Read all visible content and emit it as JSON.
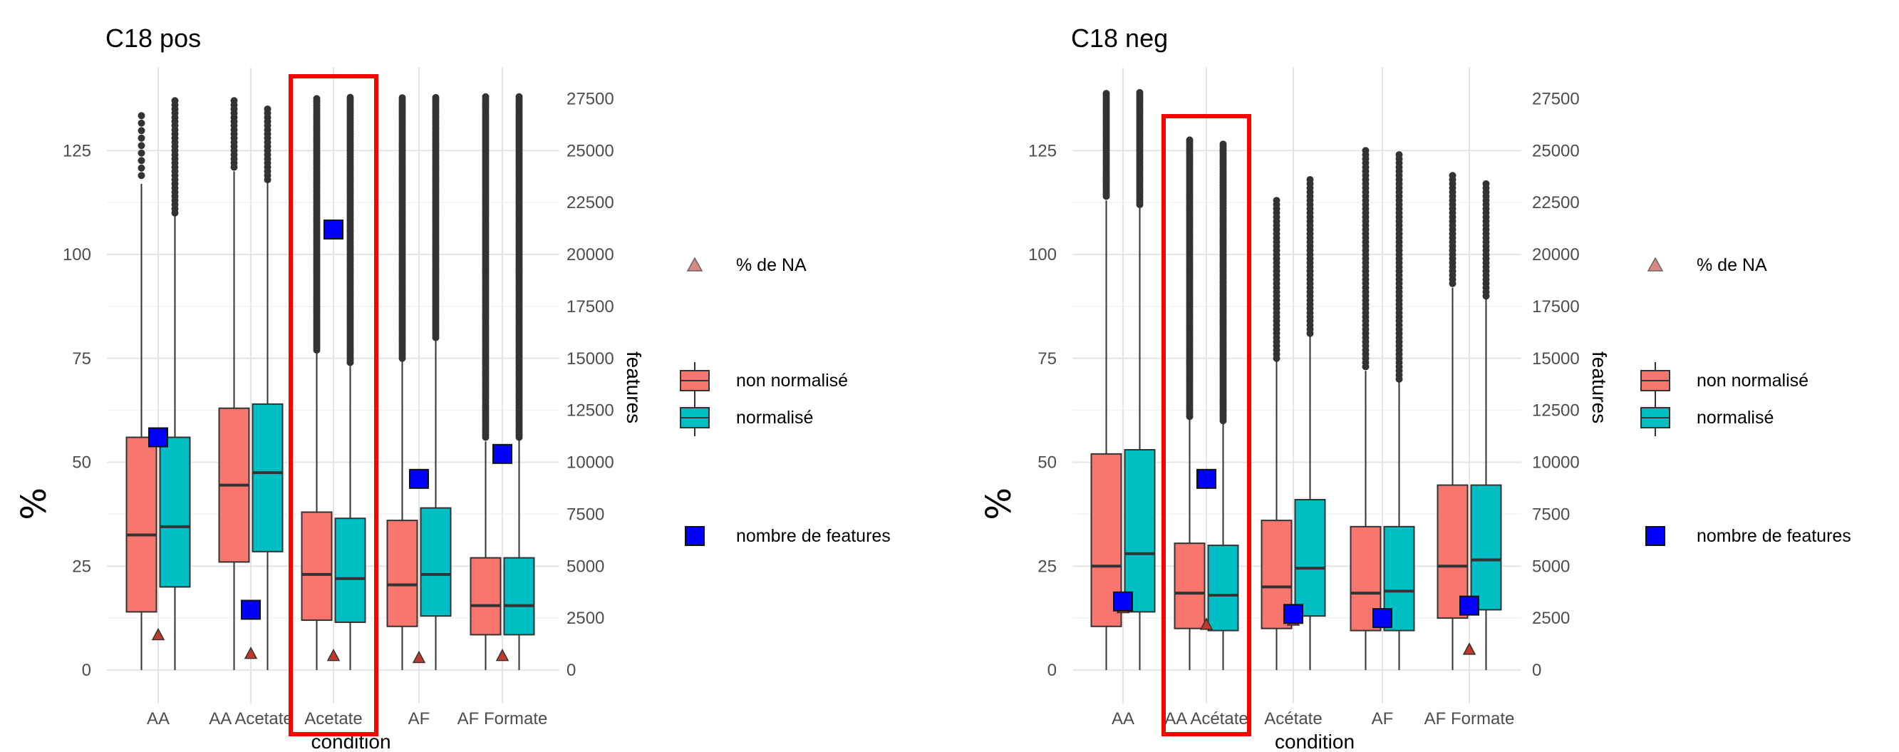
{
  "chart_data": [
    {
      "type": "boxplot",
      "title": "C18 pos",
      "xlabel": "condition",
      "ylabel": "%",
      "y2label": "features",
      "ylim": [
        -8,
        145
      ],
      "y_ticks": [
        0,
        25,
        50,
        75,
        100,
        125
      ],
      "y2_ticks": [
        0,
        2500,
        5000,
        7500,
        10000,
        12500,
        15000,
        17500,
        20000,
        22500,
        25000,
        27500
      ],
      "y2_per_y": 200,
      "categories": [
        "AA",
        "AA Acetate",
        "Acetate",
        "AF",
        "AF Formate"
      ],
      "highlighted_category": "Acetate",
      "series": [
        {
          "name": "non normalisé",
          "color": "#F8766D",
          "boxes": [
            {
              "category": "AA",
              "q1": 14,
              "median": 32.5,
              "q3": 56,
              "whisker_low": 0,
              "whisker_high": 117,
              "outliers_from": 119,
              "outliers_to": 134,
              "outlier_density": "sparse"
            },
            {
              "category": "AA Acetate",
              "q1": 26,
              "median": 44.5,
              "q3": 63,
              "whisker_low": 0,
              "whisker_high": 120,
              "outliers_from": 121,
              "outliers_to": 137,
              "outlier_density": "medium"
            },
            {
              "category": "Acetate",
              "q1": 12,
              "median": 23,
              "q3": 38,
              "whisker_low": 0,
              "whisker_high": 77,
              "outliers_from": 77,
              "outliers_to": 138,
              "outlier_density": "dense"
            },
            {
              "category": "AF",
              "q1": 10.5,
              "median": 20.5,
              "q3": 36,
              "whisker_low": 0,
              "whisker_high": 75,
              "outliers_from": 75,
              "outliers_to": 138,
              "outlier_density": "dense"
            },
            {
              "category": "AF Formate",
              "q1": 8.5,
              "median": 15.5,
              "q3": 27,
              "whisker_low": 0,
              "whisker_high": 55,
              "outliers_from": 56,
              "outliers_to": 138,
              "outlier_density": "dense"
            }
          ]
        },
        {
          "name": "normalisé",
          "color": "#00BFC4",
          "boxes": [
            {
              "category": "AA",
              "q1": 20,
              "median": 34.5,
              "q3": 56,
              "whisker_low": 0,
              "whisker_high": 110,
              "outliers_from": 110,
              "outliers_to": 137,
              "outlier_density": "medium"
            },
            {
              "category": "AA Acetate",
              "q1": 28.5,
              "median": 47.5,
              "q3": 64,
              "whisker_low": 0,
              "whisker_high": 118,
              "outliers_from": 118,
              "outliers_to": 135,
              "outlier_density": "medium"
            },
            {
              "category": "Acetate",
              "q1": 11.5,
              "median": 22,
              "q3": 36.5,
              "whisker_low": 0,
              "whisker_high": 74,
              "outliers_from": 74,
              "outliers_to": 138,
              "outlier_density": "dense"
            },
            {
              "category": "AF",
              "q1": 13,
              "median": 23,
              "q3": 39,
              "whisker_low": 0,
              "whisker_high": 80,
              "outliers_from": 80,
              "outliers_to": 138,
              "outlier_density": "dense"
            },
            {
              "category": "AF Formate",
              "q1": 8.5,
              "median": 15.5,
              "q3": 27,
              "whisker_low": 0,
              "whisker_high": 56,
              "outliers_from": 56,
              "outliers_to": 138,
              "outlier_density": "dense"
            }
          ]
        }
      ],
      "na_percent": [
        8.5,
        4,
        3.5,
        3,
        3.5
      ],
      "feature_counts": [
        11200,
        2900,
        21200,
        9200,
        10400
      ],
      "legend": {
        "na_label": "% de NA",
        "box_labels": [
          "non normalisé",
          "normalisé"
        ],
        "features_label": "nombre de features"
      },
      "colors": {
        "non_normalise": "#F8766D",
        "normalise": "#00BFC4",
        "features": "#0000FF",
        "na_triangle": "#C0392B",
        "highlight": "#FF0000"
      }
    },
    {
      "type": "boxplot",
      "title": "C18 neg",
      "xlabel": "condition",
      "ylabel": "%",
      "y2label": "features",
      "ylim": [
        -8,
        145
      ],
      "y_ticks": [
        0,
        25,
        50,
        75,
        100,
        125
      ],
      "y2_ticks": [
        0,
        2500,
        5000,
        7500,
        10000,
        12500,
        15000,
        17500,
        20000,
        22500,
        25000,
        27500
      ],
      "y2_per_y": 200,
      "categories": [
        "AA",
        "AA Acétate",
        "Acétate",
        "AF",
        "AF Formate"
      ],
      "highlighted_category": "AA Acétate",
      "series": [
        {
          "name": "non normalisé",
          "color": "#F8766D",
          "boxes": [
            {
              "category": "AA",
              "q1": 10.5,
              "median": 25,
              "q3": 52,
              "whisker_low": 0,
              "whisker_high": 113,
              "outliers_from": 114,
              "outliers_to": 139,
              "outlier_density": "dense"
            },
            {
              "category": "AA Acétate",
              "q1": 10,
              "median": 18.5,
              "q3": 30.5,
              "whisker_low": 0,
              "whisker_high": 61,
              "outliers_from": 61,
              "outliers_to": 128,
              "outlier_density": "dense"
            },
            {
              "category": "Acétate",
              "q1": 10,
              "median": 20,
              "q3": 36,
              "whisker_low": 0,
              "whisker_high": 75,
              "outliers_from": 75,
              "outliers_to": 113,
              "outlier_density": "medium"
            },
            {
              "category": "AF",
              "q1": 9.5,
              "median": 18.5,
              "q3": 34.5,
              "whisker_low": 0,
              "whisker_high": 72,
              "outliers_from": 73,
              "outliers_to": 125,
              "outlier_density": "medium"
            },
            {
              "category": "AF Formate",
              "q1": 12.5,
              "median": 25,
              "q3": 44.5,
              "whisker_low": 0,
              "whisker_high": 92,
              "outliers_from": 93,
              "outliers_to": 119,
              "outlier_density": "medium"
            }
          ]
        },
        {
          "name": "normalisé",
          "color": "#00BFC4",
          "boxes": [
            {
              "category": "AA",
              "q1": 14,
              "median": 28,
              "q3": 53,
              "whisker_low": 0,
              "whisker_high": 112,
              "outliers_from": 112,
              "outliers_to": 139,
              "outlier_density": "dense"
            },
            {
              "category": "AA Acétate",
              "q1": 9.5,
              "median": 18,
              "q3": 30,
              "whisker_low": 0,
              "whisker_high": 60,
              "outliers_from": 60,
              "outliers_to": 127,
              "outlier_density": "dense"
            },
            {
              "category": "Acétate",
              "q1": 13,
              "median": 24.5,
              "q3": 41,
              "whisker_low": 0,
              "whisker_high": 81,
              "outliers_from": 81,
              "outliers_to": 118,
              "outlier_density": "medium"
            },
            {
              "category": "AF",
              "q1": 9.5,
              "median": 19,
              "q3": 34.5,
              "whisker_low": 0,
              "whisker_high": 70,
              "outliers_from": 70,
              "outliers_to": 124,
              "outlier_density": "medium"
            },
            {
              "category": "AF Formate",
              "q1": 14.5,
              "median": 26.5,
              "q3": 44.5,
              "whisker_low": 0,
              "whisker_high": 90,
              "outliers_from": 90,
              "outliers_to": 117,
              "outlier_density": "medium"
            }
          ]
        }
      ],
      "na_percent": [
        15,
        11,
        12,
        13,
        5
      ],
      "feature_counts": [
        3300,
        9200,
        2700,
        2500,
        3100
      ],
      "legend": {
        "na_label": "% de NA",
        "box_labels": [
          "non normalisé",
          "normalisé"
        ],
        "features_label": "nombre de features"
      },
      "colors": {
        "non_normalise": "#F8766D",
        "normalise": "#00BFC4",
        "features": "#0000FF",
        "na_triangle": "#C0392B",
        "highlight": "#FF0000"
      }
    }
  ]
}
